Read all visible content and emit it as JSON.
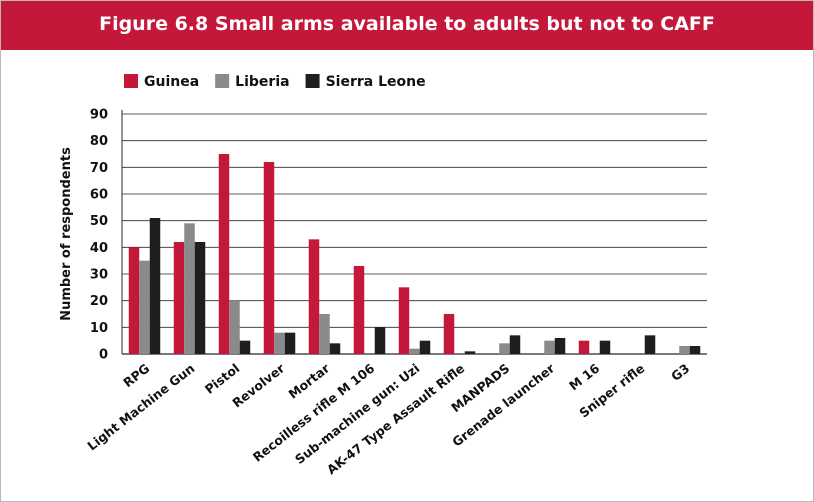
{
  "figure": {
    "title": "Figure 6.8 Small arms available to adults but not to CAFF"
  },
  "colors": {
    "header": "#c4183a",
    "guinea": "#c4183a",
    "liberia": "#8a8a8c",
    "sierra_leone": "#1e1e1e"
  },
  "chart_data": {
    "type": "bar",
    "title": "Figure 6.8 Small arms available to adults but not to CAFF",
    "xlabel": "",
    "ylabel": "Number of respondents",
    "ylim": [
      0,
      90
    ],
    "yticks": [
      "0",
      "10",
      "20",
      "30",
      "40",
      "50",
      "60",
      "70",
      "80",
      "90"
    ],
    "grid": true,
    "legend_position": "top-left",
    "categories": [
      "RPG",
      "Light Machine Gun",
      "Pistol",
      "Revolver",
      "Mortar",
      "Recoilless rifle M 106",
      "Sub-machine gun: Uzi",
      "AK-47 Type Assault Rifle",
      "MANPADS",
      "Grenade launcher",
      "M 16",
      "Sniper rifle",
      "G3"
    ],
    "series": [
      {
        "name": "Guinea",
        "color": "#c4183a",
        "values": [
          40,
          42,
          75,
          72,
          43,
          33,
          25,
          15,
          0,
          0,
          5,
          0,
          0
        ]
      },
      {
        "name": "Liberia",
        "color": "#8a8a8c",
        "values": [
          35,
          49,
          20,
          8,
          15,
          0,
          2,
          0,
          4,
          5,
          0,
          0,
          3
        ]
      },
      {
        "name": "Sierra Leone",
        "color": "#1e1e1e",
        "values": [
          51,
          42,
          5,
          8,
          4,
          10,
          5,
          1,
          7,
          6,
          5,
          7,
          3
        ]
      }
    ]
  }
}
